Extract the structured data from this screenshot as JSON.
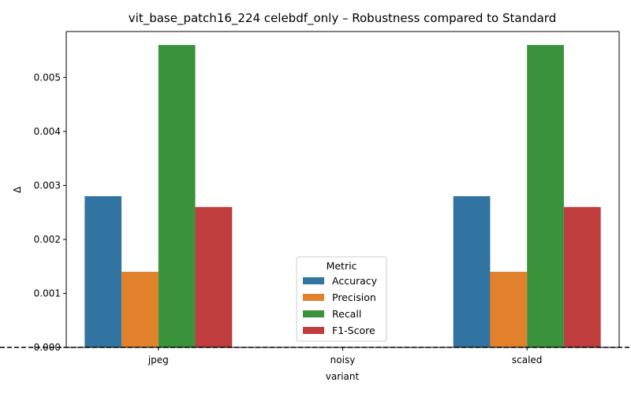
{
  "chart_data": {
    "type": "bar",
    "title": "vit_base_patch16_224 celebdf_only – Robustness compared to Standard",
    "xlabel": "variant",
    "ylabel": "Δ",
    "categories": [
      "jpeg",
      "noisy",
      "scaled"
    ],
    "series": [
      {
        "name": "Accuracy",
        "color": "#3274a1",
        "values": [
          0.0028,
          0.0,
          0.0028
        ]
      },
      {
        "name": "Precision",
        "color": "#e1812c",
        "values": [
          0.0014,
          0.0,
          0.0014
        ]
      },
      {
        "name": "Recall",
        "color": "#3a923a",
        "values": [
          0.0056,
          0.0,
          0.0056
        ]
      },
      {
        "name": "F1-Score",
        "color": "#c03d3e",
        "values": [
          0.0026,
          0.0,
          0.0026
        ]
      }
    ],
    "ylim": [
      0,
      0.00585
    ],
    "yticks": [
      "0.000",
      "0.001",
      "0.002",
      "0.003",
      "0.004",
      "0.005"
    ],
    "ytick_values": [
      0,
      0.001,
      0.002,
      0.003,
      0.004,
      0.005
    ],
    "grid": false,
    "reference_line": {
      "y": 0,
      "style": "dashed",
      "color": "#000000"
    },
    "legend": {
      "title": "Metric",
      "placement": "lower-center"
    }
  }
}
